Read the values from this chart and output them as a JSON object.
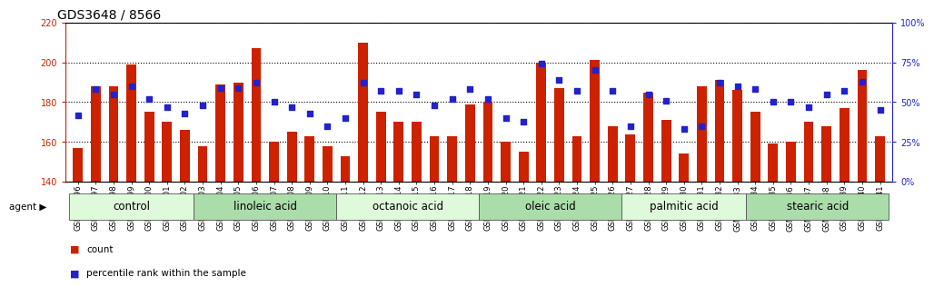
{
  "title": "GDS3648 / 8566",
  "samples": [
    "GSM525196",
    "GSM525197",
    "GSM525198",
    "GSM525199",
    "GSM525200",
    "GSM525201",
    "GSM525202",
    "GSM525203",
    "GSM525204",
    "GSM525205",
    "GSM525206",
    "GSM525207",
    "GSM525208",
    "GSM525209",
    "GSM525210",
    "GSM525211",
    "GSM525212",
    "GSM525213",
    "GSM525214",
    "GSM525215",
    "GSM525216",
    "GSM525217",
    "GSM525218",
    "GSM525219",
    "GSM525220",
    "GSM525221",
    "GSM525222",
    "GSM525223",
    "GSM525224",
    "GSM525225",
    "GSM525226",
    "GSM525227",
    "GSM525228",
    "GSM525229",
    "GSM525230",
    "GSM525231",
    "GSM525232",
    "GSM525233",
    "GSM525234",
    "GSM525235",
    "GSM525236",
    "GSM525237",
    "GSM525238",
    "GSM525239",
    "GSM525240",
    "GSM525241"
  ],
  "counts": [
    157,
    188,
    188,
    199,
    175,
    170,
    166,
    158,
    189,
    190,
    207,
    160,
    165,
    163,
    158,
    153,
    210,
    175,
    170,
    170,
    163,
    163,
    179,
    180,
    160,
    155,
    200,
    187,
    163,
    201,
    168,
    164,
    185,
    171,
    154,
    188,
    191,
    186,
    175,
    159,
    160,
    170,
    168,
    177,
    196,
    163
  ],
  "percentiles": [
    42,
    58,
    55,
    60,
    52,
    47,
    43,
    48,
    59,
    59,
    62,
    50,
    47,
    43,
    35,
    40,
    62,
    57,
    57,
    55,
    48,
    52,
    58,
    52,
    40,
    38,
    74,
    64,
    57,
    70,
    57,
    35,
    55,
    51,
    33,
    35,
    62,
    60,
    58,
    50,
    50,
    47,
    55,
    57,
    63,
    45
  ],
  "groups": [
    {
      "label": "control",
      "start": 0,
      "end": 7
    },
    {
      "label": "linoleic acid",
      "start": 7,
      "end": 15
    },
    {
      "label": "octanoic acid",
      "start": 15,
      "end": 23
    },
    {
      "label": "oleic acid",
      "start": 23,
      "end": 31
    },
    {
      "label": "palmitic acid",
      "start": 31,
      "end": 38
    },
    {
      "label": "stearic acid",
      "start": 38,
      "end": 46
    }
  ],
  "bar_color": "#CC2200",
  "dot_color": "#2222CC",
  "group_bg_color_light": "#DFFADA",
  "group_bg_color_dark": "#AADDAA",
  "plot_bg": "#FFFFFF",
  "ylim_left": [
    140,
    220
  ],
  "ylim_right": [
    0,
    100
  ],
  "yticks_left": [
    140,
    160,
    180,
    200,
    220
  ],
  "yticks_right": [
    0,
    25,
    50,
    75,
    100
  ],
  "yticklabels_right": [
    "0%",
    "25%",
    "50%",
    "75%",
    "100%"
  ],
  "bar_width": 0.55
}
